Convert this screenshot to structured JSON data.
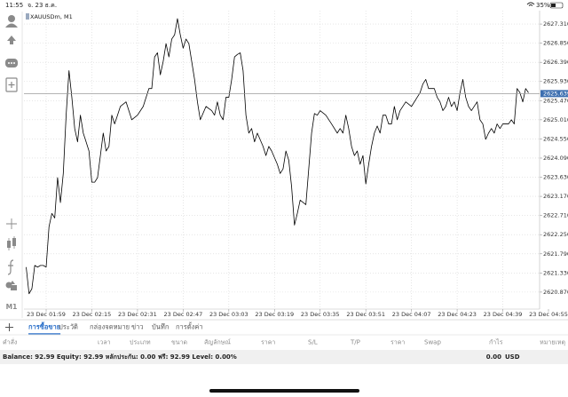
{
  "status_bar": {
    "time": "11:55",
    "date": "จ. 23 ธ.ค.",
    "battery": "35%"
  },
  "chart_data": {
    "type": "line",
    "title": "XAUUSDm, M1",
    "color": "#000000",
    "grid": true,
    "x": [
      "23 Dec 01:52",
      "23 Dec 01:53",
      "23 Dec 01:54",
      "23 Dec 01:55",
      "23 Dec 01:56",
      "23 Dec 01:57",
      "23 Dec 01:58",
      "23 Dec 01:59",
      "23 Dec 02:00",
      "23 Dec 02:01",
      "23 Dec 02:02",
      "23 Dec 02:03",
      "23 Dec 02:04",
      "23 Dec 02:05",
      "23 Dec 02:06",
      "23 Dec 02:07",
      "23 Dec 02:08",
      "23 Dec 02:09",
      "23 Dec 02:10",
      "23 Dec 02:11",
      "23 Dec 02:12",
      "23 Dec 02:13",
      "23 Dec 02:14",
      "23 Dec 02:15",
      "23 Dec 02:16",
      "23 Dec 02:17",
      "23 Dec 02:18",
      "23 Dec 02:19",
      "23 Dec 02:20",
      "23 Dec 02:21",
      "23 Dec 02:22",
      "23 Dec 02:23",
      "23 Dec 02:24",
      "23 Dec 02:25",
      "23 Dec 02:27",
      "23 Dec 02:29",
      "23 Dec 02:31",
      "23 Dec 02:33",
      "23 Dec 02:35",
      "23 Dec 02:36",
      "23 Dec 02:37",
      "23 Dec 02:38",
      "23 Dec 02:39",
      "23 Dec 02:40",
      "23 Dec 02:41",
      "23 Dec 02:42",
      "23 Dec 02:43",
      "23 Dec 02:44",
      "23 Dec 02:45",
      "23 Dec 02:46",
      "23 Dec 02:47",
      "23 Dec 02:48",
      "23 Dec 02:49",
      "23 Dec 02:50",
      "23 Dec 02:51",
      "23 Dec 02:52",
      "23 Dec 02:53",
      "23 Dec 02:55",
      "23 Dec 02:57",
      "23 Dec 02:58",
      "23 Dec 02:59",
      "23 Dec 03:00",
      "23 Dec 03:01",
      "23 Dec 03:02",
      "23 Dec 03:03",
      "23 Dec 03:04",
      "23 Dec 03:05",
      "23 Dec 03:06",
      "23 Dec 03:07",
      "23 Dec 03:08",
      "23 Dec 03:09",
      "23 Dec 03:10",
      "23 Dec 03:11",
      "23 Dec 03:12",
      "23 Dec 03:13",
      "23 Dec 03:15",
      "23 Dec 03:16",
      "23 Dec 03:17",
      "23 Dec 03:18",
      "23 Dec 03:20",
      "23 Dec 03:21",
      "23 Dec 03:22",
      "23 Dec 03:23",
      "23 Dec 03:24",
      "23 Dec 03:25",
      "23 Dec 03:26",
      "23 Dec 03:27",
      "23 Dec 03:28",
      "23 Dec 03:30",
      "23 Dec 03:31",
      "23 Dec 03:32",
      "23 Dec 03:33",
      "23 Dec 03:34",
      "23 Dec 03:35",
      "23 Dec 03:37",
      "23 Dec 03:39",
      "23 Dec 03:41",
      "23 Dec 03:42",
      "23 Dec 03:43",
      "23 Dec 03:44",
      "23 Dec 03:45",
      "23 Dec 03:46",
      "23 Dec 03:47",
      "23 Dec 03:48",
      "23 Dec 03:49",
      "23 Dec 03:50",
      "23 Dec 03:51",
      "23 Dec 03:52",
      "23 Dec 03:53",
      "23 Dec 03:54",
      "23 Dec 03:55",
      "23 Dec 03:56",
      "23 Dec 03:57",
      "23 Dec 03:58",
      "23 Dec 03:59",
      "23 Dec 04:00",
      "23 Dec 04:01",
      "23 Dec 04:02",
      "23 Dec 04:03",
      "23 Dec 04:05",
      "23 Dec 04:07",
      "23 Dec 04:09",
      "23 Dec 04:10",
      "23 Dec 04:11",
      "23 Dec 04:12",
      "23 Dec 04:13",
      "23 Dec 04:15",
      "23 Dec 04:16",
      "23 Dec 04:17",
      "23 Dec 04:18",
      "23 Dec 04:19",
      "23 Dec 04:20",
      "23 Dec 04:21",
      "23 Dec 04:22",
      "23 Dec 04:23",
      "23 Dec 04:24",
      "23 Dec 04:25",
      "23 Dec 04:26",
      "23 Dec 04:27",
      "23 Dec 04:28",
      "23 Dec 04:30",
      "23 Dec 04:31",
      "23 Dec 04:32",
      "23 Dec 04:33",
      "23 Dec 04:34",
      "23 Dec 04:35",
      "23 Dec 04:36",
      "23 Dec 04:37",
      "23 Dec 04:38",
      "23 Dec 04:39",
      "23 Dec 04:41",
      "23 Dec 04:42",
      "23 Dec 04:43",
      "23 Dec 04:44",
      "23 Dec 04:45",
      "23 Dec 04:46",
      "23 Dec 04:47",
      "23 Dec 04:48"
    ],
    "values": [
      2621.47,
      2620.83,
      2620.95,
      2621.51,
      2621.47,
      2621.51,
      2621.51,
      2621.47,
      2622.44,
      2622.76,
      2622.65,
      2623.62,
      2623.02,
      2623.72,
      2625.12,
      2626.19,
      2625.55,
      2624.8,
      2624.48,
      2625.12,
      2624.69,
      2624.48,
      2624.26,
      2623.51,
      2623.51,
      2623.62,
      2624.15,
      2624.69,
      2624.26,
      2624.37,
      2625.12,
      2624.91,
      2625.12,
      2625.33,
      2625.44,
      2625.01,
      2625.12,
      2625.33,
      2625.76,
      2625.76,
      2626.52,
      2626.62,
      2626.09,
      2626.41,
      2626.84,
      2626.52,
      2626.95,
      2627.05,
      2627.44,
      2627.05,
      2626.73,
      2626.95,
      2626.84,
      2626.41,
      2625.98,
      2625.44,
      2625.01,
      2625.33,
      2625.23,
      2625.12,
      2625.44,
      2625.12,
      2625.01,
      2625.55,
      2625.55,
      2625.98,
      2626.52,
      2626.58,
      2626.62,
      2626.19,
      2625.12,
      2624.69,
      2624.8,
      2624.48,
      2624.69,
      2624.37,
      2624.15,
      2624.37,
      2624.26,
      2623.94,
      2623.72,
      2623.83,
      2624.26,
      2624.04,
      2623.4,
      2622.48,
      2622.76,
      2623.08,
      2622.97,
      2623.83,
      2624.69,
      2625.16,
      2625.12,
      2625.23,
      2625.12,
      2624.91,
      2624.69,
      2624.8,
      2624.69,
      2625.12,
      2624.8,
      2624.37,
      2624.15,
      2624.26,
      2623.94,
      2624.15,
      2623.47,
      2623.94,
      2624.37,
      2624.69,
      2624.86,
      2624.69,
      2625.12,
      2625.12,
      2624.91,
      2624.91,
      2625.33,
      2625.01,
      2625.23,
      2625.44,
      2625.33,
      2625.55,
      2625.66,
      2625.87,
      2625.98,
      2625.76,
      2625.76,
      2625.55,
      2625.44,
      2625.23,
      2625.33,
      2625.55,
      2625.33,
      2625.44,
      2625.23,
      2625.66,
      2625.98,
      2625.55,
      2625.33,
      2625.23,
      2625.44,
      2625.01,
      2624.91,
      2624.54,
      2624.69,
      2624.8,
      2624.69,
      2624.91,
      2624.8,
      2624.91,
      2624.91,
      2625.01,
      2624.91,
      2625.76,
      2625.66,
      2625.44,
      2625.76,
      2625.66
    ],
    "xlim": [
      "23 Dec 01:52",
      "23 Dec 04:55"
    ],
    "xticks": [
      "23 Dec 01:59",
      "23 Dec 02:15",
      "23 Dec 02:31",
      "23 Dec 02:47",
      "23 Dec 03:03",
      "23 Dec 03:19",
      "23 Dec 03:35",
      "23 Dec 03:51",
      "23 Dec 04:07",
      "23 Dec 04:23",
      "23 Dec 04:39",
      "23 Dec 04:55"
    ],
    "ylim": [
      2620.462,
      2627.589
    ],
    "yticks": [
      {
        "value": 2627.31,
        "label": "2627.310"
      },
      {
        "value": 2626.85,
        "label": "2626.850"
      },
      {
        "value": 2626.39,
        "label": "2626.390"
      },
      {
        "value": 2625.93,
        "label": "2625.930"
      },
      {
        "value": 2625.47,
        "label": "2625.470"
      },
      {
        "value": 2625.01,
        "label": "2625.010"
      },
      {
        "value": 2624.55,
        "label": "2624.550"
      },
      {
        "value": 2624.09,
        "label": "2624.090"
      },
      {
        "value": 2623.63,
        "label": "2623.630"
      },
      {
        "value": 2623.17,
        "label": "2623.170"
      },
      {
        "value": 2622.71,
        "label": "2622.710"
      },
      {
        "value": 2622.25,
        "label": "2622.250"
      },
      {
        "value": 2621.79,
        "label": "2621.790"
      },
      {
        "value": 2621.33,
        "label": "2621.330"
      },
      {
        "value": 2620.87,
        "label": "2620.870"
      }
    ],
    "current_price": 2625.639
  },
  "toolbar": {
    "timeframe": "M1"
  },
  "tabs": [
    "การซื้อขาย",
    "ประวัติ",
    "กล่องจดหมาย",
    "ข่าว",
    "บันทึก",
    "การตั้งค่า"
  ],
  "columns": [
    "คำสั่ง",
    "เวลา",
    "ประเภท",
    "ขนาด",
    "สัญลักษณ์",
    "ราคา",
    "S/L",
    "T/P",
    "ราคา",
    "Swap",
    "กำไร",
    "หมายเหตุ"
  ],
  "account": {
    "summary": "Balance: 92.99 Equity: 92.99 หลักประกัน: 0.00 ฟรี: 92.99 Level: 0.00%",
    "profit": "0.00",
    "currency": "USD"
  }
}
